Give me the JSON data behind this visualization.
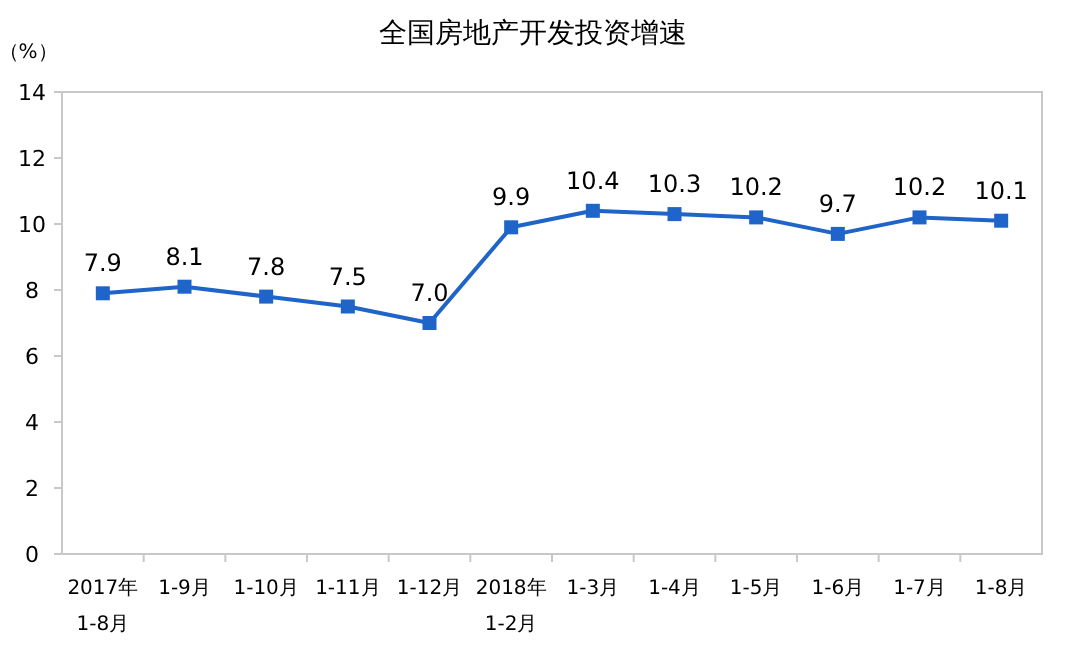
{
  "chart_data": {
    "type": "line",
    "title": "全国房地产开发投资增速",
    "ylabel": "（%）",
    "categories": [
      "2017年\n1-8月",
      "1-9月",
      "1-10月",
      "1-11月",
      "1-12月",
      "2018年\n1-2月",
      "1-3月",
      "1-4月",
      "1-5月",
      "1-6月",
      "1-7月",
      "1-8月"
    ],
    "series": [
      {
        "color": "#1f64c8",
        "values": [
          7.9,
          8.1,
          7.8,
          7.5,
          7.0,
          9.9,
          10.4,
          10.3,
          10.2,
          9.7,
          10.2,
          10.1
        ],
        "value_labels": [
          "7.9",
          "8.1",
          "7.8",
          "7.5",
          "7.0",
          "9.9",
          "10.4",
          "10.3",
          "10.2",
          "9.7",
          "10.2",
          "10.1"
        ]
      }
    ],
    "ylim": [
      0,
      14
    ],
    "yticks": [
      0,
      2,
      4,
      6,
      8,
      10,
      12,
      14
    ],
    "marker": "square",
    "line_style": "solid"
  }
}
